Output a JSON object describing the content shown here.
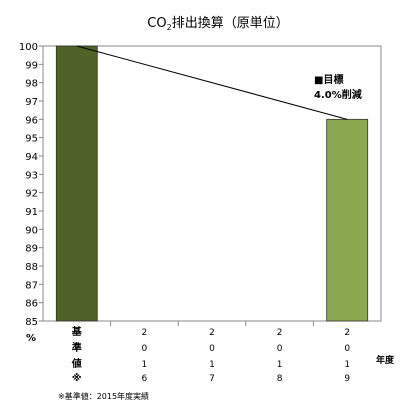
{
  "chart_data": {
    "type": "bar",
    "title": "CO₂排出換算（原単位）",
    "title_parts": {
      "prefix": "CO",
      "subscript": "2",
      "suffix": "排出換算（原単位）"
    },
    "ylabel": "%",
    "xlabel": "年度",
    "ylim": [
      85,
      100
    ],
    "yticks": [
      85,
      86,
      87,
      88,
      89,
      90,
      91,
      92,
      93,
      94,
      95,
      96,
      97,
      98,
      99,
      100
    ],
    "grid": false,
    "categories": [
      "基準値※",
      "2016",
      "2017",
      "2018",
      "2019"
    ],
    "category_labels": [
      [
        "基",
        "準",
        "値",
        "※"
      ],
      [
        "2",
        "0",
        "1",
        "6"
      ],
      [
        "2",
        "0",
        "1",
        "7"
      ],
      [
        "2",
        "0",
        "1",
        "8"
      ],
      [
        "2",
        "0",
        "1",
        "9"
      ]
    ],
    "values": [
      100,
      null,
      null,
      null,
      96
    ],
    "bar_colors": [
      "#4f6228",
      null,
      null,
      null,
      "#8aa850"
    ],
    "trend_line": {
      "from": 0,
      "to": 4
    },
    "annotation": {
      "marker": "■",
      "lines": [
        "■目標",
        "4.0%削減"
      ]
    }
  },
  "footnote": "※基準値：2015年度実績"
}
